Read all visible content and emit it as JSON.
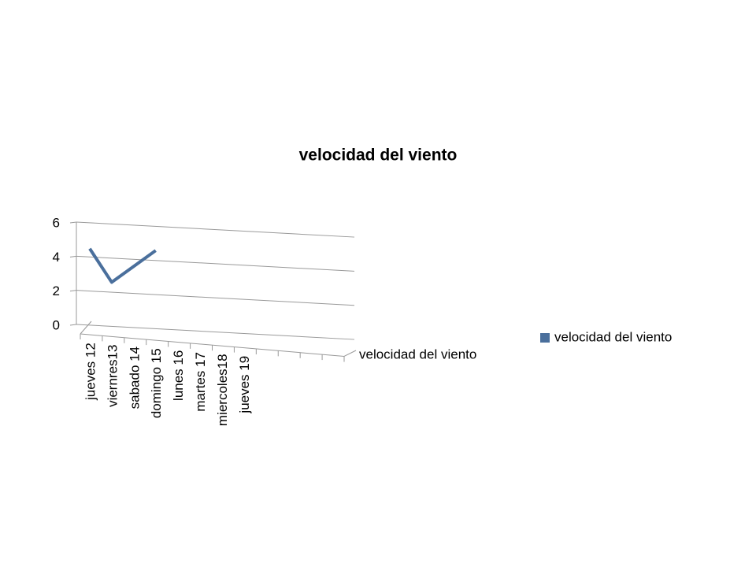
{
  "chart_data": {
    "type": "line3d",
    "title": "velocidad del viento",
    "categories": [
      "jueves 12",
      "viernres13",
      "sabado 14",
      "domingo 15",
      "lunes 16",
      "martes 17",
      "miercoles18",
      "jueves 19",
      null,
      null,
      null,
      null
    ],
    "series": [
      {
        "name": "velocidad del viento",
        "color": "#4a6f9c",
        "values": [
          4.3,
          2.4,
          3.4,
          4.4,
          null,
          null,
          null,
          null,
          null,
          null,
          null,
          null
        ]
      }
    ],
    "ylim": [
      0,
      6
    ],
    "yticks": [
      0,
      2,
      4,
      6
    ],
    "grid": true,
    "legend": "right"
  }
}
